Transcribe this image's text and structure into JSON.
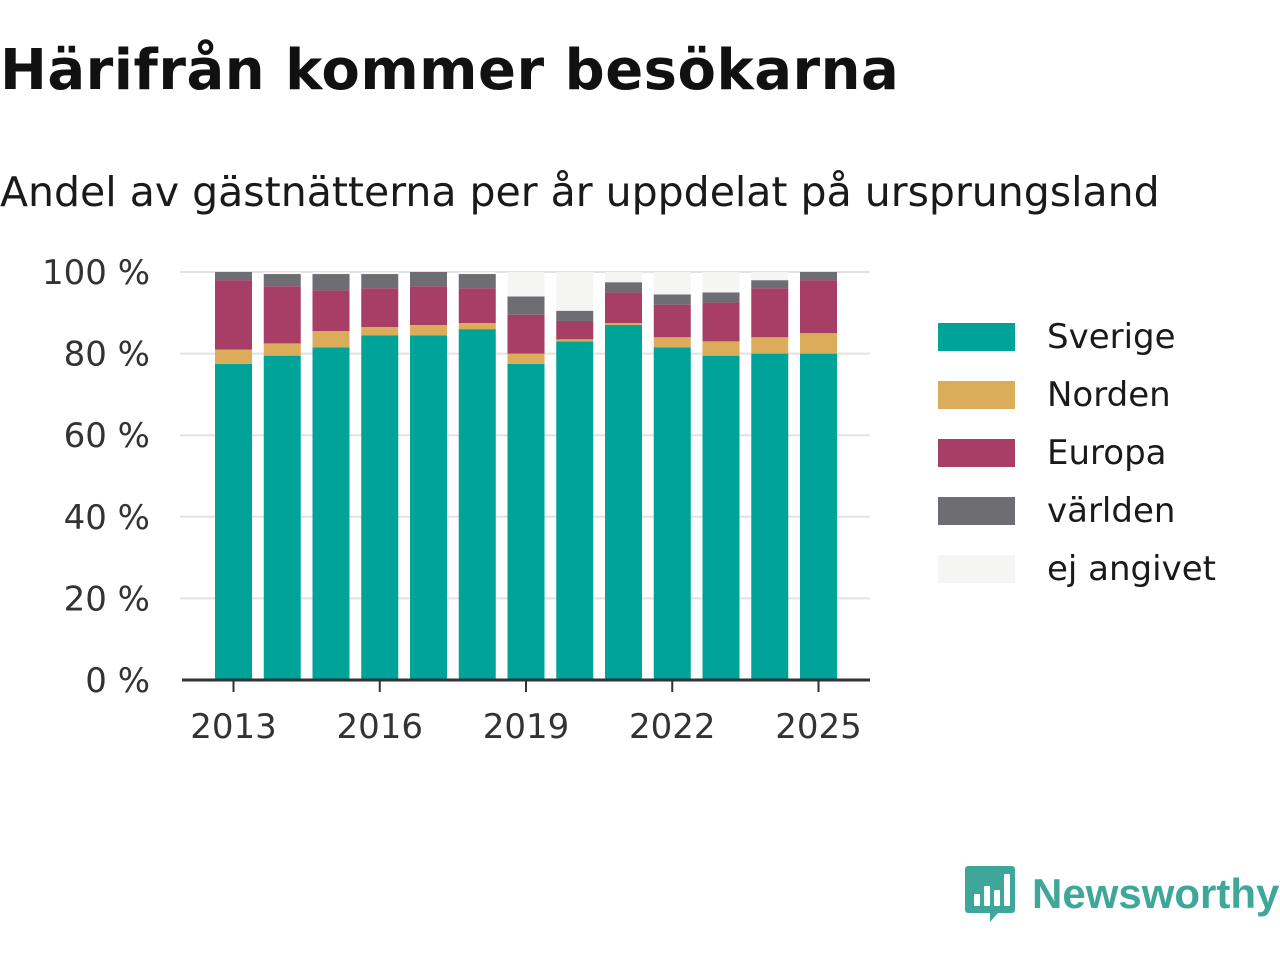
{
  "title": "Härifrån kommer besökarna",
  "subtitle": "Andel av gästnätterna per år uppdelat på ursprungsland",
  "brand": {
    "name": "Newsworthy",
    "icon": "newsworthy-logo-icon",
    "color": "#3fa79a"
  },
  "chart_data": {
    "type": "bar",
    "stacked": true,
    "categories": [
      "2013",
      "2014",
      "2015",
      "2016",
      "2017",
      "2018",
      "2019",
      "2020",
      "2021",
      "2022",
      "2023",
      "2024",
      "2025"
    ],
    "x_tick_labels": [
      "2013",
      "2016",
      "2019",
      "2022",
      "2025"
    ],
    "y_tick_labels": [
      "0 %",
      "20 %",
      "40 %",
      "60 %",
      "80 %",
      "100 %"
    ],
    "y_ticks": [
      0,
      20,
      40,
      60,
      80,
      100
    ],
    "ylim": [
      0,
      100
    ],
    "grid": true,
    "legend_position": "right",
    "series": [
      {
        "name": "Sverige",
        "color": "#00a398",
        "values": [
          77.5,
          79.5,
          81.5,
          84.5,
          84.5,
          86,
          77.5,
          83,
          87,
          81.5,
          79.5,
          80,
          80
        ]
      },
      {
        "name": "Norden",
        "color": "#dbad5b",
        "values": [
          3.5,
          3,
          4,
          2,
          2.5,
          1.5,
          2.5,
          0.5,
          0.5,
          2.5,
          3.5,
          4,
          5
        ]
      },
      {
        "name": "Europa",
        "color": "#a63e66",
        "values": [
          17,
          14,
          10,
          9.5,
          9.5,
          8.5,
          9.5,
          4.5,
          7.5,
          8,
          9.5,
          12,
          13
        ]
      },
      {
        "name": "världen",
        "color": "#6e6d73",
        "values": [
          2,
          3,
          4,
          3.5,
          3.5,
          3.5,
          4.5,
          2.5,
          2.5,
          2.5,
          2.5,
          2,
          2
        ]
      },
      {
        "name": "ej angivet",
        "color": "#f5f5f3",
        "values": [
          0,
          0.5,
          0.5,
          0.5,
          0,
          0.5,
          6,
          9.5,
          2.5,
          5.5,
          5,
          2,
          0
        ]
      }
    ]
  }
}
